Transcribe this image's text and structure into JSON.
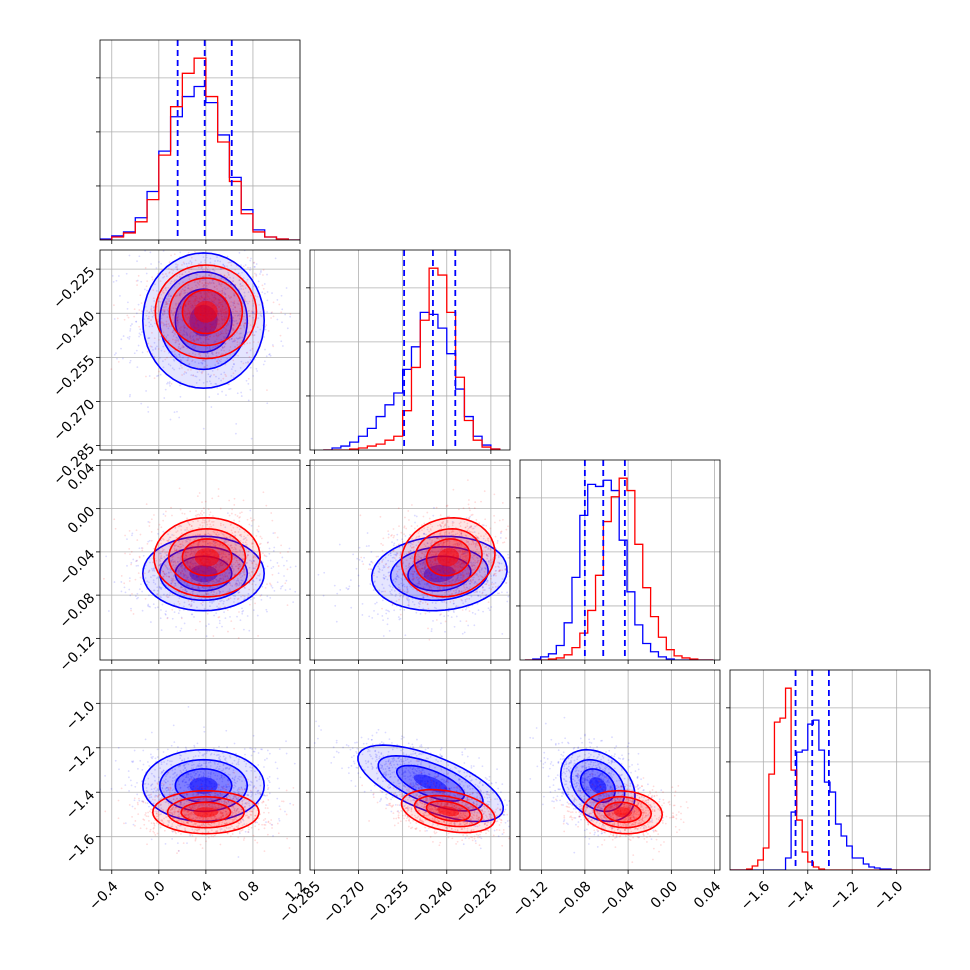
{
  "chart_data": {
    "type": "corner",
    "grid": true,
    "series": [
      {
        "name": "",
        "color": "#0000ff"
      },
      {
        "name": "",
        "color": "#ff0000"
      }
    ],
    "parameters": [
      {
        "index": 0,
        "range": [
          -0.5,
          1.2
        ],
        "ticks": [
          -0.4,
          0.0,
          0.4,
          0.8,
          1.2
        ],
        "tick_labels": [
          "−0.4",
          "0.0",
          "0.4",
          "0.8",
          "1.2"
        ],
        "quantiles": [
          0.16,
          0.39,
          0.62
        ],
        "hist_centers": [
          -0.45,
          -0.35,
          -0.25,
          -0.15,
          -0.05,
          0.05,
          0.15,
          0.25,
          0.35,
          0.45,
          0.55,
          0.65,
          0.75,
          0.85,
          0.95,
          1.05,
          1.15
        ],
        "hist": [
          [
            1,
            4,
            8,
            22,
            48,
            88,
            122,
            142,
            152,
            136,
            104,
            62,
            30,
            10,
            3,
            1,
            0
          ],
          [
            0,
            3,
            7,
            18,
            40,
            84,
            132,
            165,
            180,
            142,
            97,
            58,
            26,
            8,
            3,
            1,
            0
          ]
        ]
      },
      {
        "index": 1,
        "range": [
          -0.2865,
          -0.2185
        ],
        "ticks": [
          -0.285,
          -0.27,
          -0.255,
          -0.24,
          -0.225
        ],
        "tick_labels": [
          "−0.285",
          "−0.270",
          "−0.255",
          "−0.240",
          "−0.225"
        ],
        "quantiles": [
          -0.2545,
          -0.2447,
          -0.2371
        ],
        "hist_centers": [
          -0.2805,
          -0.2775,
          -0.2745,
          -0.2715,
          -0.2685,
          -0.2655,
          -0.2625,
          -0.2595,
          -0.2565,
          -0.2535,
          -0.2505,
          -0.2475,
          -0.2445,
          -0.2415,
          -0.2385,
          -0.2355,
          -0.2325,
          -0.2295,
          -0.2265,
          -0.2235
        ],
        "hist": [
          [
            0,
            2,
            4,
            8,
            14,
            22,
            34,
            46,
            58,
            82,
            105,
            140,
            138,
            124,
            98,
            62,
            34,
            14,
            5,
            1
          ],
          [
            0,
            0,
            0,
            1,
            2,
            4,
            6,
            10,
            14,
            40,
            84,
            132,
            185,
            178,
            140,
            74,
            30,
            10,
            3,
            1
          ]
        ]
      },
      {
        "index": 2,
        "range": [
          -0.14,
          0.045
        ],
        "ticks": [
          -0.12,
          -0.08,
          -0.04,
          0.0,
          0.04
        ],
        "tick_labels": [
          "−0.12",
          "−0.08",
          "−0.04",
          "0.00",
          "0.04"
        ],
        "quantiles": [
          -0.08,
          -0.063,
          -0.043
        ],
        "hist_centers": [
          -0.1318,
          -0.1245,
          -0.1173,
          -0.11,
          -0.1028,
          -0.0955,
          -0.0883,
          -0.081,
          -0.0737,
          -0.0665,
          -0.0592,
          -0.0519,
          -0.0446,
          -0.0374,
          -0.0301,
          -0.0228,
          -0.0156,
          -0.0083,
          -0.001,
          0.0062,
          0.0135,
          0.0208,
          0.0281,
          0.0353
        ],
        "hist": [
          [
            0,
            1,
            3,
            6,
            14,
            36,
            80,
            140,
            170,
            168,
            174,
            164,
            116,
            66,
            34,
            16,
            8,
            3,
            1,
            0,
            0,
            0,
            0,
            0
          ],
          [
            0,
            0,
            0,
            1,
            2,
            5,
            12,
            26,
            48,
            82,
            134,
            158,
            176,
            164,
            112,
            70,
            42,
            22,
            10,
            4,
            2,
            1,
            0,
            0
          ]
        ]
      },
      {
        "index": 3,
        "range": [
          -1.75,
          -0.85
        ],
        "ticks": [
          -1.6,
          -1.4,
          -1.2,
          -1.0
        ],
        "tick_labels": [
          "−1.6",
          "−1.4",
          "−1.2",
          "−1.0"
        ],
        "quantiles": [
          -1.455,
          -1.38,
          -1.305
        ],
        "hist_centers": [
          -1.7375,
          -1.7125,
          -1.6875,
          -1.6625,
          -1.6375,
          -1.6125,
          -1.5875,
          -1.5625,
          -1.5375,
          -1.5125,
          -1.4875,
          -1.4625,
          -1.4375,
          -1.4125,
          -1.3875,
          -1.3625,
          -1.3375,
          -1.3125,
          -1.2875,
          -1.2625,
          -1.2375,
          -1.2125,
          -1.1875,
          -1.1625,
          -1.1375,
          -1.1125,
          -1.0875,
          -1.0625,
          -1.0375,
          -1.0125,
          -0.9875,
          -0.9625,
          -0.9375,
          -0.9125,
          -0.8875,
          -0.8625
        ],
        "hist": [
          [
            0,
            0,
            0,
            0,
            0,
            0,
            0,
            0,
            0,
            0,
            12,
            58,
            118,
            120,
            146,
            150,
            120,
            88,
            78,
            46,
            34,
            24,
            12,
            12,
            6,
            3,
            2,
            1,
            1,
            0,
            0,
            0,
            0,
            0,
            0,
            0
          ],
          [
            0,
            0,
            0,
            1,
            4,
            10,
            22,
            96,
            148,
            152,
            182,
            100,
            50,
            18,
            8,
            3,
            1,
            0,
            0,
            0,
            0,
            0,
            0,
            0,
            0,
            0,
            0,
            0,
            0,
            0,
            0,
            0,
            0,
            0,
            0,
            0
          ]
        ]
      }
    ],
    "pairs": [
      {
        "x": 0,
        "y": 1,
        "blue": {
          "center": [
            0.38,
            -0.2425
          ],
          "sd": [
            0.24,
            0.0107
          ],
          "rho": 0.0
        },
        "red": {
          "center": [
            0.4,
            -0.2395
          ],
          "sd": [
            0.2,
            0.0074
          ],
          "rho": 0.0
        }
      },
      {
        "x": 0,
        "y": 2,
        "blue": {
          "center": [
            0.38,
            -0.06
          ],
          "sd": [
            0.24,
            0.016
          ],
          "rho": 0.0
        },
        "red": {
          "center": [
            0.41,
            -0.045
          ],
          "sd": [
            0.21,
            0.017
          ],
          "rho": 0.0
        }
      },
      {
        "x": 1,
        "y": 2,
        "blue": {
          "center": [
            -0.2425,
            -0.06
          ],
          "sd": [
            0.0107,
            0.016
          ],
          "rho": 0.1
        },
        "red": {
          "center": [
            -0.2395,
            -0.045
          ],
          "sd": [
            0.0074,
            0.017
          ],
          "rho": 0.1
        }
      },
      {
        "x": 0,
        "y": 3,
        "blue": {
          "center": [
            0.38,
            -1.37
          ],
          "sd": [
            0.24,
            0.075
          ],
          "rho": 0.0
        },
        "red": {
          "center": [
            0.4,
            -1.49
          ],
          "sd": [
            0.21,
            0.045
          ],
          "rho": 0.0
        }
      },
      {
        "x": 1,
        "y": 3,
        "blue": {
          "center": [
            -0.2455,
            -1.36
          ],
          "sd": [
            0.0115,
            0.08
          ],
          "rho": -0.65
        },
        "red": {
          "center": [
            -0.2395,
            -1.485
          ],
          "sd": [
            0.0074,
            0.045
          ],
          "rho": -0.35
        }
      },
      {
        "x": 2,
        "y": 3,
        "blue": {
          "center": [
            -0.068,
            -1.37
          ],
          "sd": [
            0.016,
            0.075
          ],
          "rho": -0.3
        },
        "red": {
          "center": [
            -0.045,
            -1.49
          ],
          "sd": [
            0.017,
            0.045
          ],
          "rho": -0.1
        }
      }
    ]
  }
}
